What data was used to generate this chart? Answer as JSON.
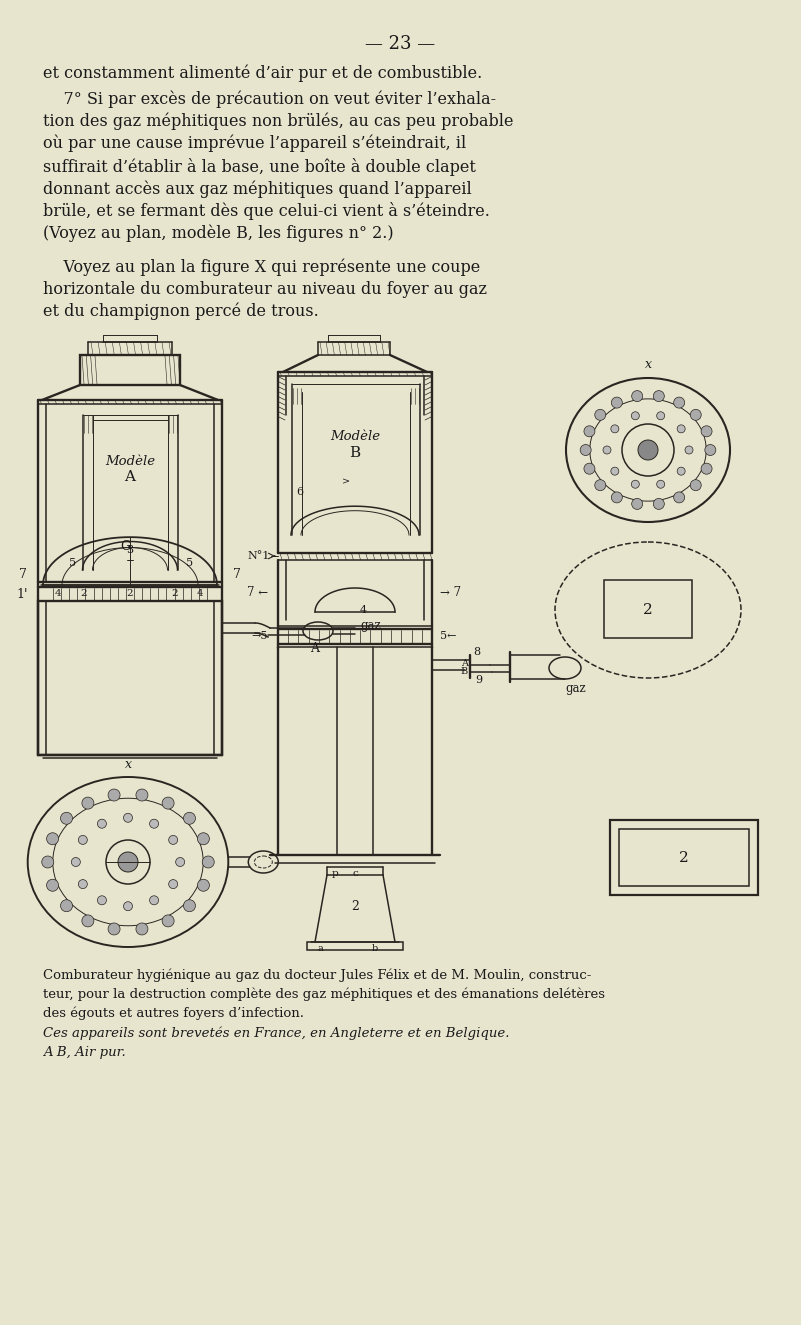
{
  "bg_color": "#e8e5cf",
  "text_color": "#1a1a1a",
  "draw_color": "#2a2520",
  "page_number": "— 23 —",
  "para1": "et constamment alimenté d’air pur et de combustible.",
  "para2_lines": [
    "    7° Si par excès de précaution on veut éviter l’exhala-",
    "tion des gaz méphitiques non brülés, au cas peu probable",
    "où par une cause imprévue l’appareil s’éteindrait, il",
    "suffirait d’établir à la base, une boîte à double clapet",
    "donnant accès aux gaz méphitiques quand l’appareil",
    "brüle, et se fermant dès que celui-ci vient à s’éteindre.",
    "(Voyez au plan, modèle B, les figures n° 2.)"
  ],
  "para3_lines": [
    "    Voyez au plan la figure X qui représente une coupe",
    "horizontale du comburateur au niveau du foyer au gaz",
    "et du champignon percé de trous."
  ],
  "caption_lines": [
    "Comburateur hygiénique au gaz du docteur Jules Félix et de M. Moulin, construc-",
    "teur, pour la destruction complète des gaz méphitiques et des émanations delétères",
    "des égouts et autres foyers d’infection.",
    "Ces appareils sont brevetés en France, en Angleterre et en Belgique.",
    "A B, Air pur."
  ]
}
